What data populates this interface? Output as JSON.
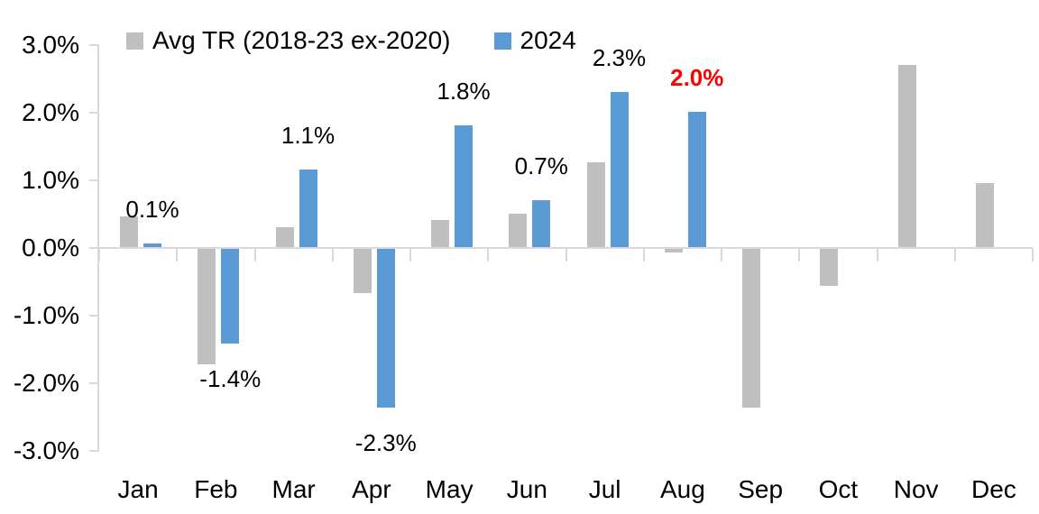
{
  "chart_data": {
    "type": "bar",
    "title": "",
    "categories": [
      "Jan",
      "Feb",
      "Mar",
      "Apr",
      "May",
      "Jun",
      "Jul",
      "Aug",
      "Sep",
      "Oct",
      "Nov",
      "Dec"
    ],
    "series": [
      {
        "name": "Avg TR (2018-23 ex-2020)",
        "color": "#bfbfbf",
        "values": [
          0.45,
          -1.7,
          0.3,
          -0.65,
          0.4,
          0.5,
          1.25,
          -0.05,
          -2.35,
          -0.55,
          2.7,
          0.95
        ]
      },
      {
        "name": "2024",
        "color": "#5b9bd5",
        "values": [
          0.05,
          -1.4,
          1.15,
          -2.35,
          1.8,
          0.7,
          2.3,
          2.0,
          null,
          null,
          null,
          null
        ],
        "data_labels": [
          {
            "text": "0.1%",
            "color": "#000000",
            "bold": false
          },
          {
            "text": "-1.4%",
            "color": "#000000",
            "bold": false
          },
          {
            "text": "1.1%",
            "color": "#000000",
            "bold": false
          },
          {
            "text": "-2.3%",
            "color": "#000000",
            "bold": false
          },
          {
            "text": "1.8%",
            "color": "#000000",
            "bold": false
          },
          {
            "text": "0.7%",
            "color": "#000000",
            "bold": false
          },
          {
            "text": "2.3%",
            "color": "#000000",
            "bold": false
          },
          {
            "text": "2.0%",
            "color": "#ff0000",
            "bold": true
          }
        ]
      }
    ],
    "y_axis": {
      "tick_labels": [
        "3.0%",
        "2.0%",
        "1.0%",
        "0.0%",
        "-1.0%",
        "-2.0%",
        "-3.0%"
      ],
      "tick_values": [
        3,
        2,
        1,
        0,
        -1,
        -2,
        -3
      ],
      "min": -3,
      "max": 3,
      "unit": "%"
    },
    "legend_position": "top",
    "gridlines": false,
    "axis_color": "#d9d9d9",
    "text_color": "#000000"
  }
}
